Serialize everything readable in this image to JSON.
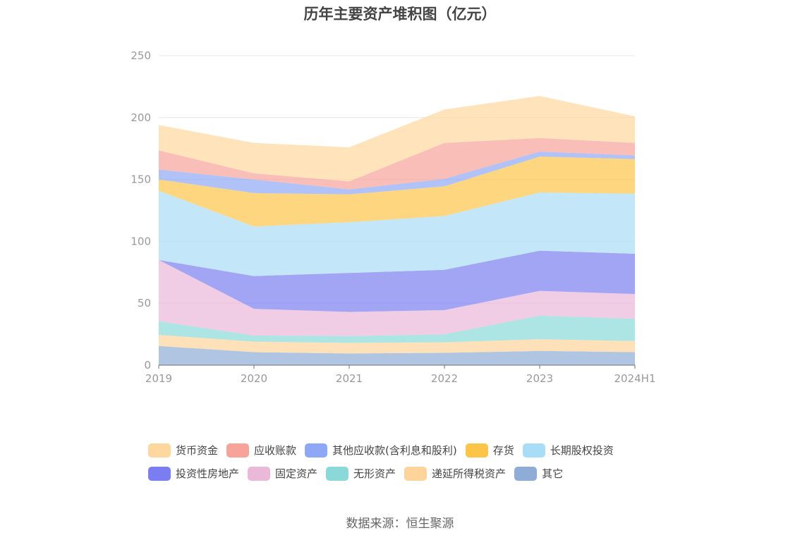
{
  "chart_data": {
    "type": "area",
    "stacked": true,
    "title": "历年主要资产堆积图（亿元）",
    "xlabel": "",
    "ylabel": "",
    "ylim": [
      0,
      250
    ],
    "yticks": [
      0,
      50,
      100,
      150,
      200,
      250
    ],
    "categories": [
      "2019",
      "2020",
      "2021",
      "2022",
      "2023",
      "2024H1"
    ],
    "grid": true,
    "legend_position": "bottom",
    "series": [
      {
        "name": "其它",
        "color": "#8eacd6",
        "values": [
          15.5,
          10.5,
          9.5,
          10,
          11.5,
          10.5
        ]
      },
      {
        "name": "递延所得税资产",
        "color": "#fed49a",
        "values": [
          9,
          8.5,
          8.5,
          8.5,
          9.5,
          9
        ]
      },
      {
        "name": "无形资产",
        "color": "#8ad8d8",
        "values": [
          11,
          5,
          5.5,
          6.5,
          19,
          18
        ]
      },
      {
        "name": "固定资产",
        "color": "#eab8d8",
        "values": [
          49.5,
          21.5,
          19.5,
          19.5,
          20,
          20
        ]
      },
      {
        "name": "投资性房地产",
        "color": "#7b7ef0",
        "values": [
          0,
          26.5,
          31.5,
          32.5,
          32.5,
          32.5
        ]
      },
      {
        "name": "长期股权投资",
        "color": "#a9ddf7",
        "values": [
          56,
          40,
          41,
          43.5,
          47,
          48.5
        ]
      },
      {
        "name": "存货",
        "color": "#fcc548",
        "values": [
          9,
          27,
          22.5,
          24,
          29,
          28
        ]
      },
      {
        "name": "其他应收款(含利息和股利)",
        "color": "#8ea8f5",
        "values": [
          8,
          11,
          4,
          6,
          4,
          3
        ]
      },
      {
        "name": "应收账款",
        "color": "#f8a39a",
        "values": [
          15.5,
          5,
          6.5,
          29,
          11,
          10
        ]
      },
      {
        "name": "货币资金",
        "color": "#fdd79e",
        "values": [
          20.5,
          24.5,
          27.5,
          27,
          34,
          21.5
        ]
      }
    ],
    "legend_order": [
      "货币资金",
      "应收账款",
      "其他应收款(含利息和股利)",
      "存货",
      "长期股权投资",
      "投资性房地产",
      "固定资产",
      "无形资产",
      "递延所得税资产",
      "其它"
    ]
  },
  "source": "数据来源：恒生聚源"
}
